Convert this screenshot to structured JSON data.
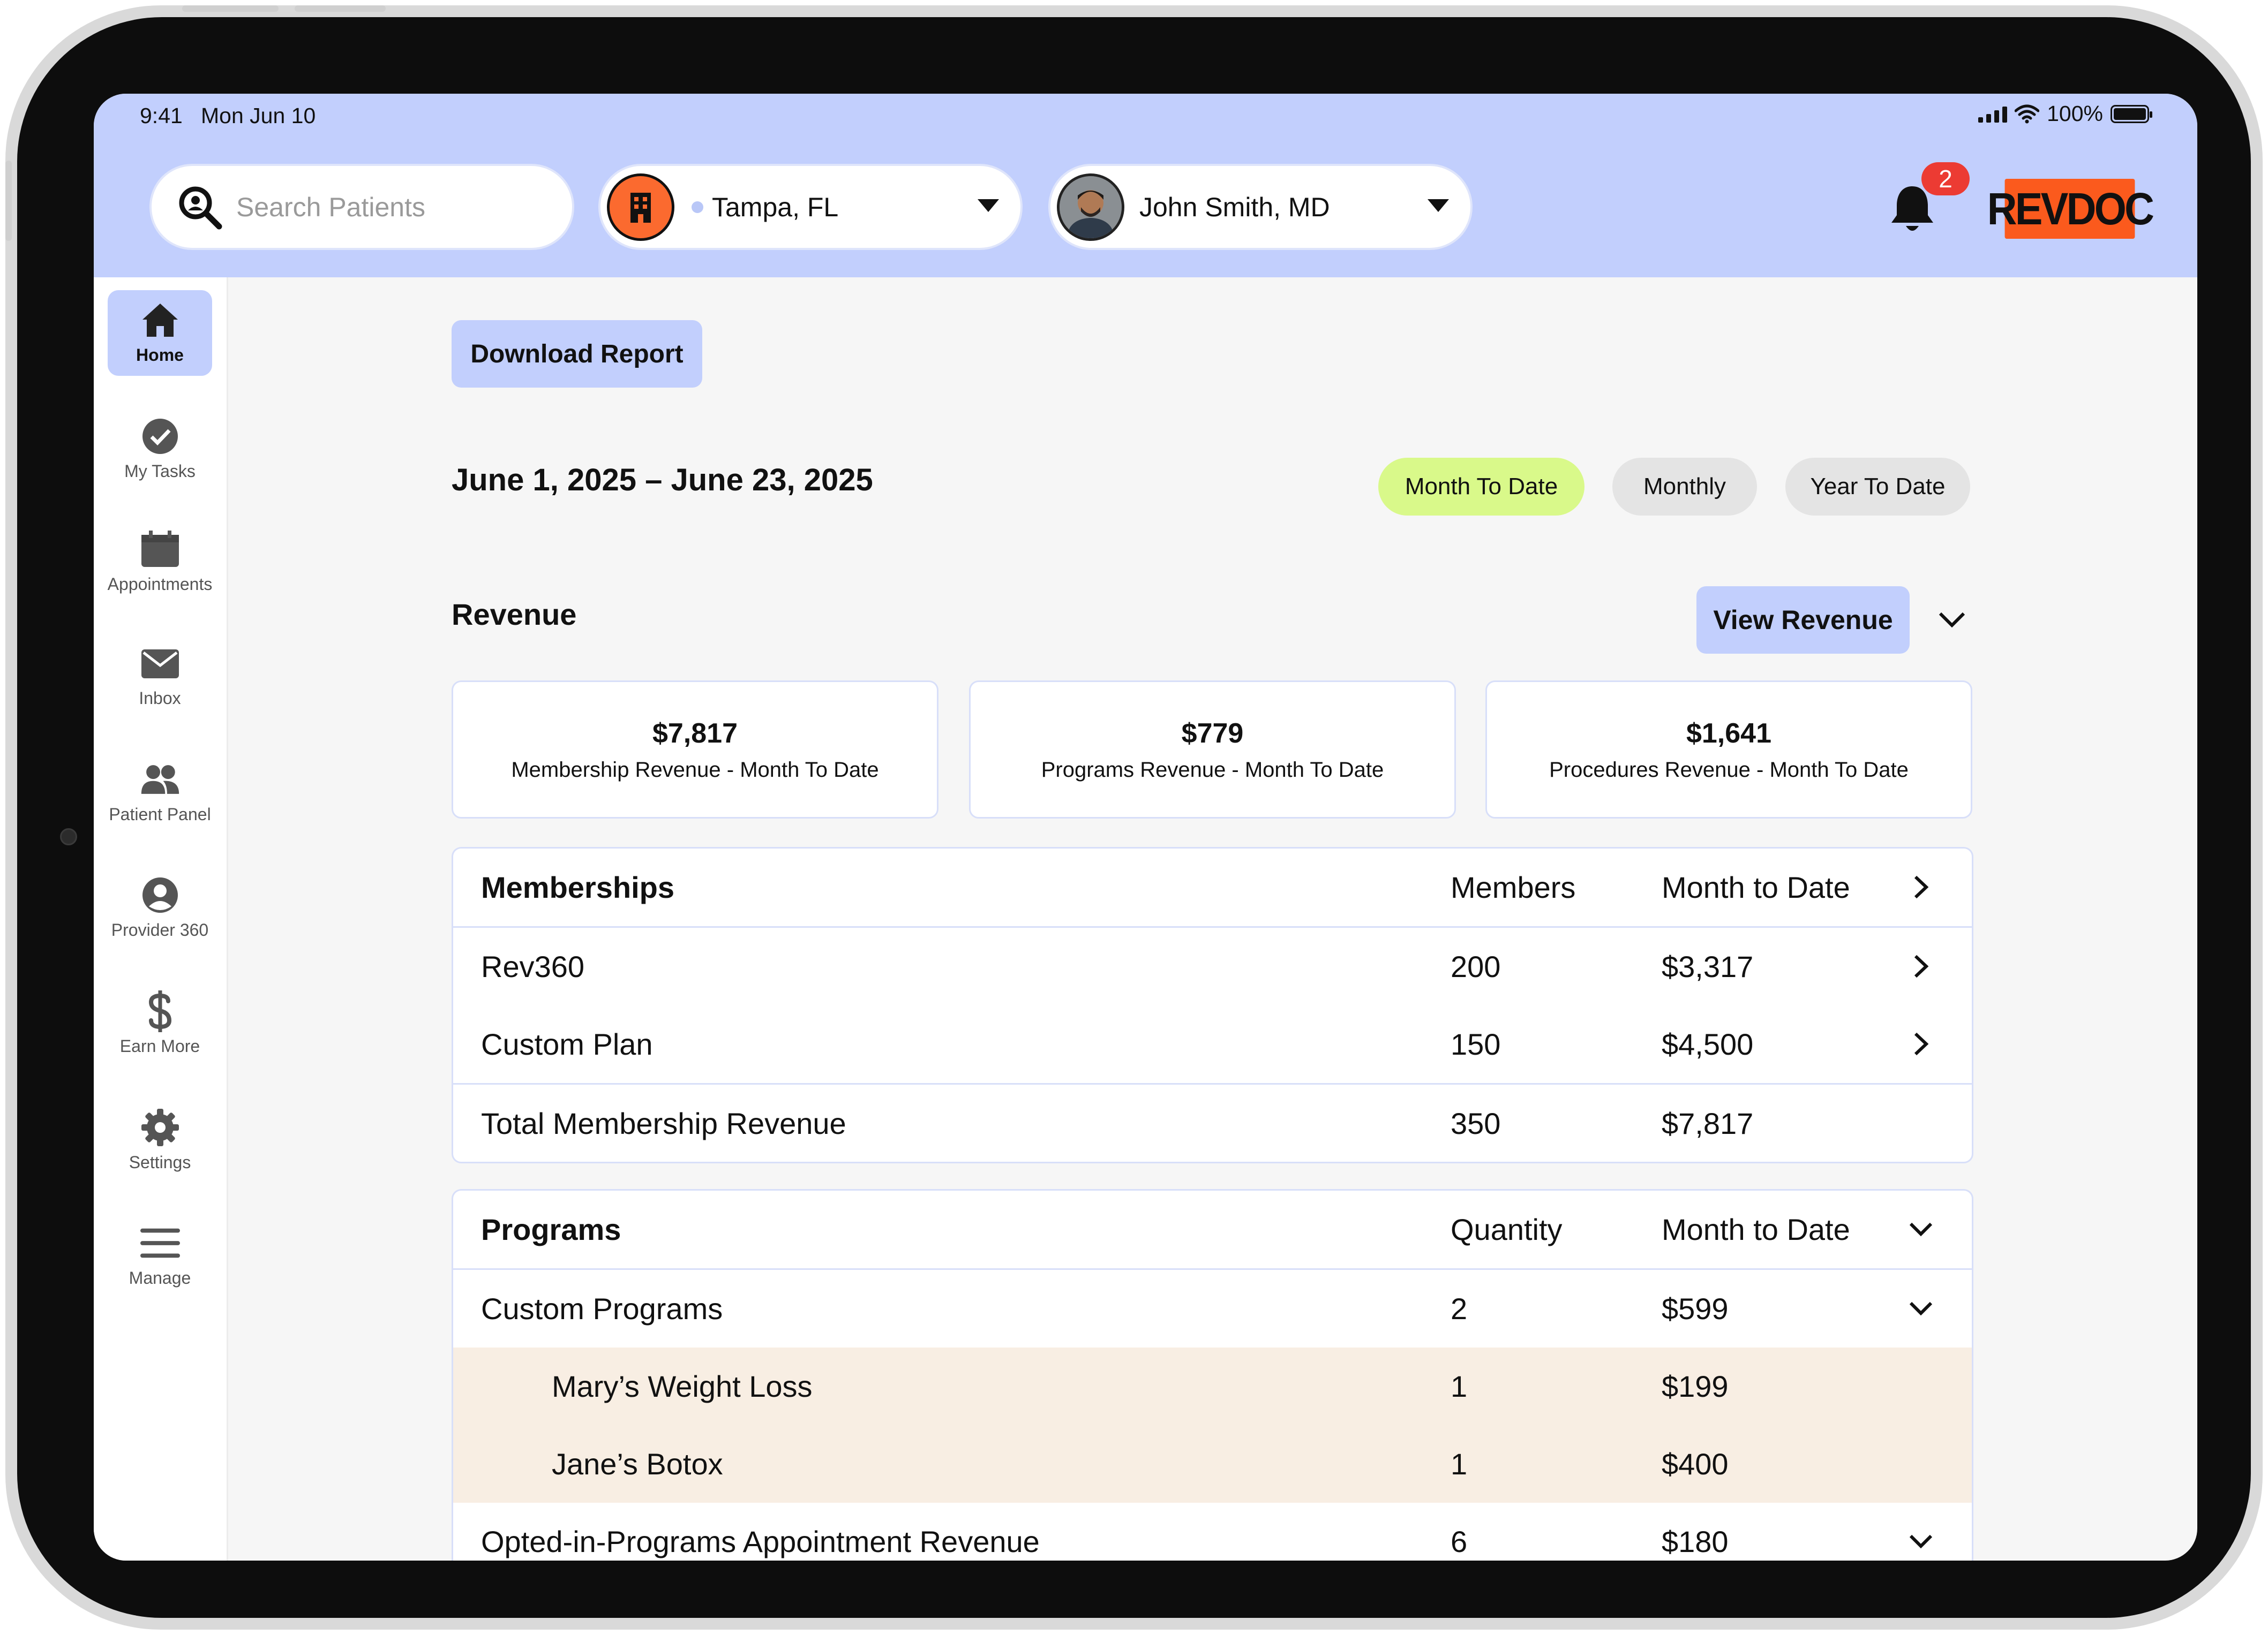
{
  "status_bar": {
    "time": "9:41",
    "date": "Mon Jun 10",
    "battery": "100%"
  },
  "header": {
    "search_placeholder": "Search Patients",
    "location": "Tampa, FL",
    "provider": "John Smith, MD",
    "notification_count": "2",
    "logo_text": "REVDOC"
  },
  "sidebar": {
    "items": [
      {
        "label": "Home",
        "icon": "home-icon"
      },
      {
        "label": "My Tasks",
        "icon": "check-circle-icon"
      },
      {
        "label": "Appointments",
        "icon": "calendar-icon"
      },
      {
        "label": "Inbox",
        "icon": "mail-icon"
      },
      {
        "label": "Patient Panel",
        "icon": "users-icon"
      },
      {
        "label": "Provider 360",
        "icon": "user-circle-icon"
      },
      {
        "label": "Earn More",
        "icon": "dollar-icon"
      },
      {
        "label": "Settings",
        "icon": "gear-icon"
      },
      {
        "label": "Manage",
        "icon": "menu-icon"
      }
    ]
  },
  "main": {
    "download_label": "Download Report",
    "date_range": "June 1, 2025 – June 23, 2025",
    "filters": [
      "Month To Date",
      "Monthly",
      "Year To Date"
    ],
    "active_filter": "Month To Date",
    "revenue_title": "Revenue",
    "view_revenue_label": "View Revenue",
    "cards": [
      {
        "value": "$7,817",
        "label": "Membership Revenue - Month To Date"
      },
      {
        "value": "$779",
        "label": "Programs Revenue - Month To Date"
      },
      {
        "value": "$1,641",
        "label": "Procedures Revenue - Month To Date"
      }
    ],
    "memberships": {
      "headers": [
        "Memberships",
        "Members",
        "Month to Date"
      ],
      "rows": [
        {
          "name": "Rev360",
          "count": "200",
          "amount": "$3,317"
        },
        {
          "name": "Custom Plan",
          "count": "150",
          "amount": "$4,500"
        }
      ],
      "total": {
        "name": "Total Membership Revenue",
        "count": "350",
        "amount": "$7,817"
      }
    },
    "programs": {
      "headers": [
        "Programs",
        "Quantity",
        "Month to Date"
      ],
      "rows": [
        {
          "name": "Custom Programs",
          "count": "2",
          "amount": "$599"
        },
        {
          "name": "Mary’s Weight Loss",
          "count": "1",
          "amount": "$199"
        },
        {
          "name": "Jane’s Botox",
          "count": "1",
          "amount": "$400"
        },
        {
          "name": "Opted-in-Programs Appointment Revenue",
          "count": "6",
          "amount": "$180"
        }
      ]
    }
  },
  "colors": {
    "accent": "#c2cffd",
    "active_chip": "#d9f98a",
    "chip": "#e4e4e4",
    "brand": "#fb5a1d",
    "subrow": "#f8eee3"
  }
}
